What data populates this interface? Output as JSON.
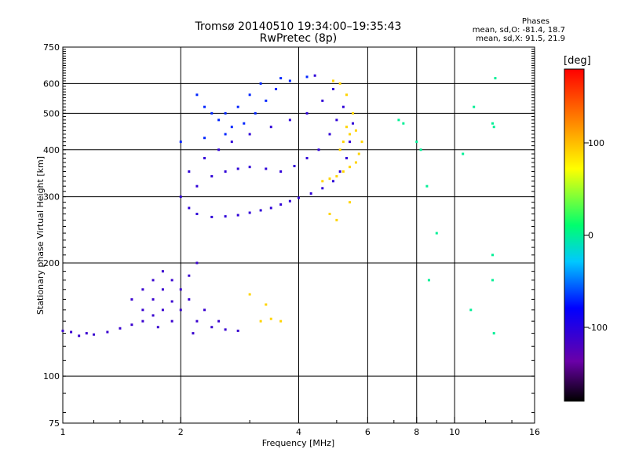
{
  "title": {
    "line1": "Tromsø 20140510 19:34:00–19:35:43",
    "line2": "RwPretec (8p)"
  },
  "stats": {
    "heading": "Phases",
    "o_mode": "mean, sd,O: -81.4, 18.7",
    "x_mode": "mean, sd,X:  91.5, 21.9"
  },
  "colorbar": {
    "unit": "[deg]",
    "ticks": [
      "100",
      "0",
      "-100"
    ],
    "tick_values": [
      100,
      0,
      -100
    ],
    "range": [
      -180,
      180
    ],
    "colormap": [
      "#000000",
      "#6a00a8",
      "#0000ff",
      "#00c8ff",
      "#00ff6e",
      "#ffff00",
      "#ff7f00",
      "#ff0000"
    ]
  },
  "chart_data": {
    "type": "scatter",
    "title": "Tromsø 20140510 19:34:00–19:35:43 RwPretec (8p)",
    "xlabel": "Frequency [MHz]",
    "ylabel": "Stationary phase Virtual Height [km]",
    "xscale": "log",
    "yscale": "log",
    "xlim": [
      1,
      16
    ],
    "ylim": [
      75,
      750
    ],
    "xticks": [
      1,
      2,
      4,
      6,
      8,
      10,
      16
    ],
    "xtick_labels": [
      "1",
      "2",
      "4",
      "6",
      "8",
      "10",
      "16"
    ],
    "yticks": [
      75,
      100,
      200,
      300,
      400,
      500,
      600,
      750
    ],
    "ytick_labels": [
      "75",
      "100",
      "200",
      "300",
      "400",
      "500",
      "600",
      "750"
    ],
    "x_gridlines": [
      2,
      4,
      6,
      8,
      10
    ],
    "y_gridlines": [
      100,
      200,
      300,
      400,
      500,
      600
    ],
    "grid": true,
    "color_variable": "phase [deg]",
    "series": [
      {
        "description": "O-mode low layer (blue)",
        "phase": -110,
        "points": [
          [
            1.0,
            132
          ],
          [
            1.05,
            131
          ],
          [
            1.1,
            128
          ],
          [
            1.15,
            130
          ],
          [
            1.2,
            129
          ],
          [
            1.3,
            131
          ],
          [
            1.4,
            134
          ],
          [
            1.5,
            137
          ],
          [
            1.6,
            140
          ],
          [
            1.7,
            145
          ],
          [
            1.8,
            150
          ],
          [
            1.9,
            158
          ],
          [
            2.0,
            170
          ],
          [
            2.1,
            185
          ],
          [
            2.2,
            200
          ],
          [
            1.5,
            160
          ],
          [
            1.6,
            170
          ],
          [
            1.7,
            180
          ],
          [
            1.8,
            190
          ],
          [
            1.9,
            180
          ],
          [
            1.6,
            150
          ],
          [
            1.7,
            160
          ],
          [
            1.8,
            170
          ],
          [
            2.0,
            150
          ],
          [
            2.2,
            140
          ],
          [
            2.4,
            135
          ],
          [
            2.6,
            133
          ],
          [
            2.8,
            132
          ],
          [
            2.5,
            140
          ],
          [
            2.3,
            150
          ],
          [
            2.1,
            160
          ],
          [
            1.9,
            140
          ],
          [
            1.75,
            135
          ],
          [
            2.15,
            130
          ]
        ]
      },
      {
        "description": "O-mode F layer trace (blue)",
        "phase": -105,
        "points": [
          [
            2.0,
            300
          ],
          [
            2.1,
            280
          ],
          [
            2.2,
            270
          ],
          [
            2.4,
            265
          ],
          [
            2.6,
            266
          ],
          [
            2.8,
            268
          ],
          [
            3.0,
            272
          ],
          [
            3.2,
            276
          ],
          [
            3.4,
            280
          ],
          [
            3.6,
            286
          ],
          [
            3.8,
            292
          ],
          [
            4.0,
            298
          ],
          [
            4.3,
            306
          ],
          [
            4.6,
            316
          ],
          [
            4.9,
            330
          ],
          [
            5.1,
            350
          ],
          [
            5.3,
            380
          ],
          [
            5.4,
            420
          ],
          [
            5.5,
            470
          ],
          [
            2.2,
            320
          ],
          [
            2.4,
            340
          ],
          [
            2.6,
            350
          ],
          [
            2.8,
            356
          ],
          [
            3.0,
            360
          ],
          [
            3.3,
            356
          ],
          [
            3.6,
            350
          ],
          [
            3.9,
            362
          ],
          [
            4.2,
            380
          ],
          [
            4.5,
            400
          ],
          [
            4.8,
            440
          ],
          [
            5.0,
            480
          ],
          [
            5.2,
            520
          ],
          [
            2.1,
            350
          ],
          [
            2.3,
            380
          ],
          [
            2.5,
            400
          ],
          [
            2.7,
            420
          ],
          [
            3.0,
            440
          ],
          [
            3.4,
            460
          ],
          [
            3.8,
            480
          ],
          [
            4.2,
            500
          ],
          [
            4.6,
            540
          ],
          [
            4.9,
            580
          ],
          [
            4.4,
            630
          ]
        ]
      },
      {
        "description": "scattered cusp / spread F (blue-cyan)",
        "phase": -70,
        "points": [
          [
            2.2,
            560
          ],
          [
            2.3,
            520
          ],
          [
            2.5,
            480
          ],
          [
            2.7,
            460
          ],
          [
            2.9,
            470
          ],
          [
            3.1,
            500
          ],
          [
            3.3,
            540
          ],
          [
            3.5,
            580
          ],
          [
            3.8,
            610
          ],
          [
            4.2,
            625
          ],
          [
            2.4,
            500
          ],
          [
            2.6,
            500
          ],
          [
            2.8,
            520
          ],
          [
            3.0,
            560
          ],
          [
            2.0,
            420
          ],
          [
            2.3,
            430
          ],
          [
            2.6,
            440
          ],
          [
            3.2,
            600
          ],
          [
            3.6,
            620
          ]
        ]
      },
      {
        "description": "X-mode trace (yellow/orange)",
        "phase": 90,
        "points": [
          [
            4.6,
            330
          ],
          [
            4.8,
            335
          ],
          [
            5.0,
            340
          ],
          [
            5.2,
            350
          ],
          [
            5.4,
            360
          ],
          [
            5.6,
            370
          ],
          [
            5.7,
            390
          ],
          [
            5.8,
            420
          ],
          [
            5.6,
            450
          ],
          [
            5.5,
            500
          ],
          [
            5.3,
            560
          ],
          [
            5.1,
            600
          ],
          [
            4.9,
            610
          ],
          [
            5.2,
            420
          ],
          [
            5.4,
            440
          ],
          [
            3.2,
            140
          ],
          [
            3.4,
            142
          ],
          [
            3.6,
            140
          ],
          [
            3.3,
            155
          ],
          [
            3.0,
            165
          ],
          [
            4.8,
            270
          ],
          [
            5.0,
            260
          ],
          [
            5.4,
            290
          ],
          [
            5.1,
            400
          ],
          [
            5.3,
            460
          ]
        ]
      },
      {
        "description": "high-frequency noise points",
        "phase": 0,
        "points": [
          [
            7.2,
            480
          ],
          [
            7.4,
            470
          ],
          [
            8.0,
            420
          ],
          [
            8.2,
            400
          ],
          [
            9.0,
            240
          ],
          [
            10.5,
            390
          ],
          [
            11.0,
            150
          ],
          [
            12.5,
            210
          ],
          [
            12.5,
            180
          ],
          [
            12.6,
            460
          ],
          [
            12.7,
            620
          ],
          [
            12.5,
            470
          ],
          [
            12.6,
            130
          ],
          [
            8.5,
            320
          ],
          [
            8.6,
            180
          ],
          [
            11.2,
            520
          ]
        ]
      }
    ]
  }
}
